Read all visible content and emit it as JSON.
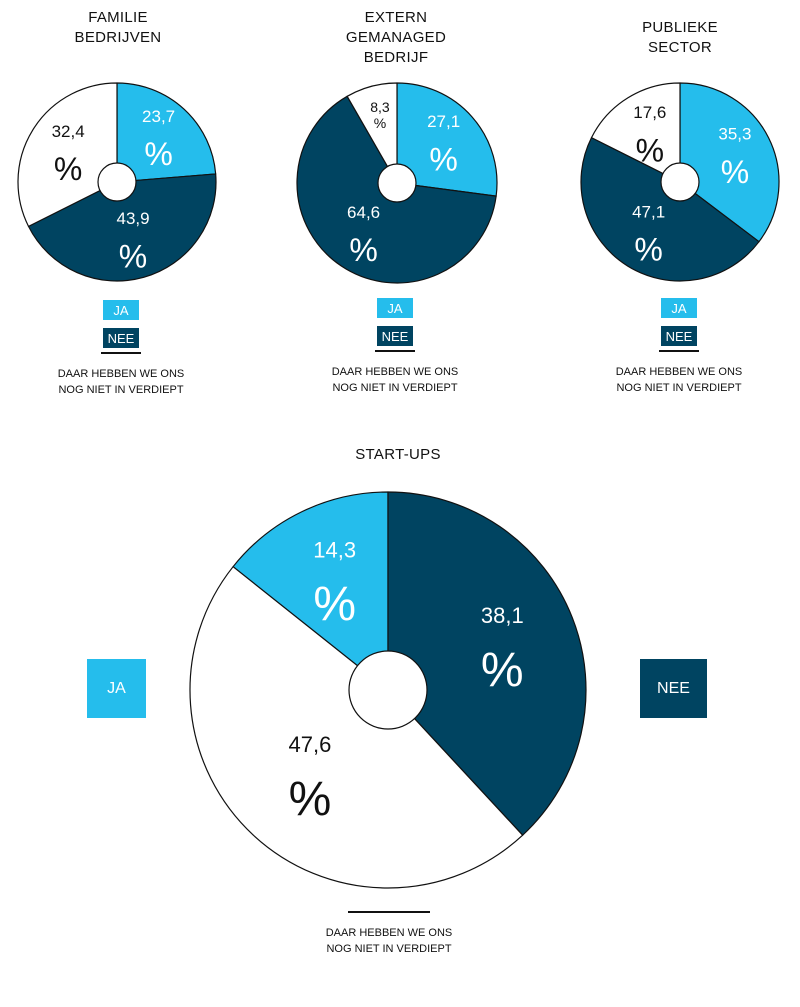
{
  "colors": {
    "ja": "#25BDEC",
    "nee": "#004461",
    "unknown": "#ffffff",
    "outline": "#111111"
  },
  "legend": {
    "ja": "JA",
    "nee": "NEE",
    "unknown": "DAAR HEBBEN WE ONS\nNOG NIET IN VERDIEPT"
  },
  "chart_data": [
    {
      "type": "pie",
      "title": "FAMILIE\nBEDRIJVEN",
      "categories": [
        "JA",
        "NEE",
        "DAAR HEBBEN WE ONS NOG NIET IN VERDIEPT"
      ],
      "values": [
        23.7,
        43.9,
        32.4
      ],
      "labels": [
        "23,7",
        "43,9",
        "32,4"
      ],
      "unit": "%"
    },
    {
      "type": "pie",
      "title": "EXTERN\nGEMANAGED\nBEDRIJF",
      "categories": [
        "JA",
        "NEE",
        "DAAR HEBBEN WE ONS NOG NIET IN VERDIEPT"
      ],
      "values": [
        27.1,
        64.6,
        8.3
      ],
      "labels": [
        "27,1",
        "64,6",
        "8,3"
      ],
      "unit": "%"
    },
    {
      "type": "pie",
      "title": "PUBLIEKE\nSECTOR",
      "categories": [
        "JA",
        "NEE",
        "DAAR HEBBEN WE ONS NOG NIET IN VERDIEPT"
      ],
      "values": [
        35.3,
        47.1,
        17.6
      ],
      "labels": [
        "35,3",
        "47,1",
        "17,6"
      ],
      "unit": "%"
    },
    {
      "type": "pie",
      "title": "START-UPS",
      "categories": [
        "JA",
        "NEE",
        "DAAR HEBBEN WE ONS NOG NIET IN VERDIEPT"
      ],
      "values": [
        14.3,
        38.1,
        47.6
      ],
      "labels": [
        "14,3",
        "38,1",
        "47,6"
      ],
      "unit": "%"
    }
  ]
}
